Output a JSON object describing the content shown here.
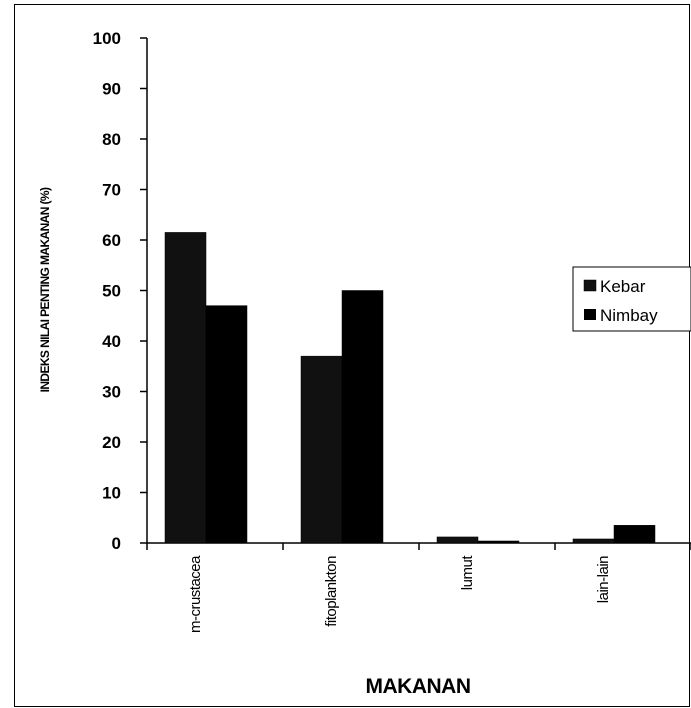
{
  "chart_data": {
    "type": "bar",
    "categories": [
      "m-crustacea",
      "fitoplankton",
      "lumut",
      "lain-lain"
    ],
    "series": [
      {
        "name": "Kebar",
        "values": [
          61.5,
          37,
          1.2,
          0.8
        ],
        "color": "#111111"
      },
      {
        "name": "Nimbay",
        "values": [
          47,
          50,
          0.4,
          3.5
        ],
        "color": "#000000"
      }
    ],
    "xlabel": "MAKANAN",
    "ylabel": "INDEKS NILAI PENTING MAKANAN (%)",
    "ylim": [
      0,
      100
    ],
    "yticks": [
      0,
      10,
      20,
      30,
      40,
      50,
      60,
      70,
      80,
      90,
      100
    ],
    "grid": false,
    "legend_position": "right"
  }
}
